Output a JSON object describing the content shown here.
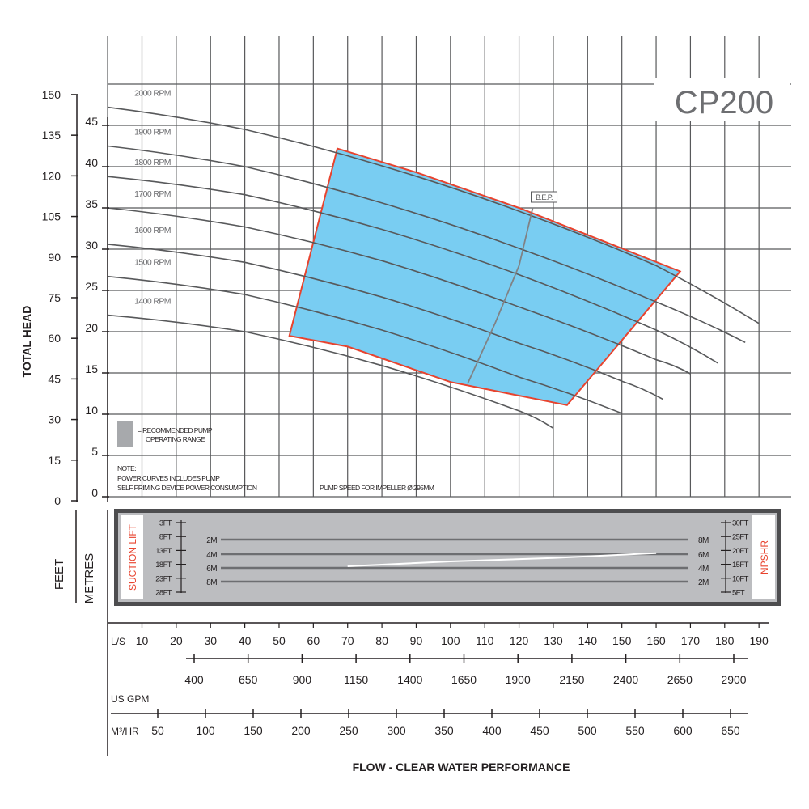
{
  "model": "CP200",
  "axes": {
    "total_head_label": "TOTAL HEAD",
    "feet_label": "FEET",
    "metres_label": "METRES",
    "feet_ticks": [
      "150",
      "135",
      "120",
      "105",
      "90",
      "75",
      "60",
      "45",
      "30",
      "15",
      "0"
    ],
    "metres_ticks": [
      "45",
      "40",
      "35",
      "30",
      "25",
      "20",
      "15",
      "10",
      "5",
      "0"
    ],
    "ls_label": "L/S",
    "ls_ticks": [
      "10",
      "20",
      "30",
      "40",
      "50",
      "60",
      "70",
      "80",
      "90",
      "100",
      "110",
      "120",
      "130",
      "140",
      "150",
      "160",
      "170",
      "180",
      "190"
    ],
    "gpm_label": "US GPM",
    "gpm_ticks": [
      "400",
      "650",
      "900",
      "1150",
      "1400",
      "1650",
      "1900",
      "2150",
      "2400",
      "2650",
      "2900"
    ],
    "m3hr_label": "M³/HR",
    "m3hr_ticks": [
      "50",
      "100",
      "150",
      "200",
      "250",
      "300",
      "350",
      "400",
      "450",
      "500",
      "550",
      "600",
      "650"
    ],
    "flow_title": "FLOW - CLEAR WATER PERFORMANCE"
  },
  "legend": {
    "line1": "= RECOMMENDED PUMP",
    "line2": "OPERATING RANGE",
    "colors": {
      "legend_swatch": "#a7a9ac",
      "range_fill": "#79cdf2",
      "range_border": "#e8432e"
    }
  },
  "notes": {
    "line1": "NOTE:",
    "line2": "POWER CURVES INCLUDES PUMP",
    "line3": "SELF PRIMING DEVICE POWER CONSUMPTION",
    "line4": "PUMP SPEED FOR IMPELLER Ø 295MM"
  },
  "bep_label": "B.E.P.",
  "suction_panel": {
    "suction_title": "SUCTION LIFT",
    "npshr_title": "NPSHR",
    "left_ft_ticks": [
      "3FT",
      "8FT",
      "13FT",
      "18FT",
      "23FT",
      "28FT"
    ],
    "left_m_ticks": [
      "2M",
      "4M",
      "6M",
      "8M"
    ],
    "right_ft_ticks": [
      "30FT",
      "25FT",
      "20FT",
      "15FT",
      "10FT",
      "5FT"
    ],
    "right_m_ticks": [
      "8M",
      "6M",
      "4M",
      "2M"
    ]
  },
  "chart_data": {
    "type": "line",
    "x_unit": "L/S",
    "y_unit": "METRES",
    "xlim": [
      10,
      190
    ],
    "ylim": [
      0,
      45
    ],
    "series": [
      {
        "name": "2000 RPM",
        "points": [
          [
            0,
            47.2
          ],
          [
            40,
            44.5
          ],
          [
            80,
            40.1
          ],
          [
            120,
            34.6
          ],
          [
            160,
            28.0
          ],
          [
            190,
            21.0
          ]
        ]
      },
      {
        "name": "1900 RPM",
        "points": [
          [
            0,
            42.5
          ],
          [
            40,
            40.0
          ],
          [
            80,
            35.6
          ],
          [
            120,
            30.1
          ],
          [
            160,
            23.6
          ],
          [
            186,
            18.7
          ]
        ]
      },
      {
        "name": "1800 RPM",
        "points": [
          [
            0,
            38.8
          ],
          [
            40,
            36.6
          ],
          [
            80,
            32.4
          ],
          [
            120,
            26.9
          ],
          [
            160,
            20.2
          ],
          [
            178,
            16.2
          ]
        ]
      },
      {
        "name": "1700 RPM",
        "points": [
          [
            0,
            35.0
          ],
          [
            40,
            32.7
          ],
          [
            80,
            28.6
          ],
          [
            120,
            23.0
          ],
          [
            160,
            16.6
          ],
          [
            170,
            14.9
          ]
        ]
      },
      {
        "name": "1600 RPM",
        "points": [
          [
            0,
            30.6
          ],
          [
            40,
            28.4
          ],
          [
            80,
            24.2
          ],
          [
            120,
            18.6
          ],
          [
            150,
            14.0
          ],
          [
            162,
            11.8
          ]
        ]
      },
      {
        "name": "1500 RPM",
        "points": [
          [
            0,
            26.7
          ],
          [
            40,
            24.5
          ],
          [
            80,
            20.2
          ],
          [
            120,
            14.5
          ],
          [
            150,
            10.1
          ]
        ]
      },
      {
        "name": "1400 RPM",
        "points": [
          [
            0,
            22.0
          ],
          [
            40,
            20.0
          ],
          [
            80,
            15.9
          ],
          [
            120,
            10.4
          ],
          [
            130,
            8.3
          ]
        ]
      }
    ],
    "recommended_range": [
      [
        53,
        19.5
      ],
      [
        67,
        42.2
      ],
      [
        90,
        39.3
      ],
      [
        120,
        35.0
      ],
      [
        167,
        27.3
      ],
      [
        134,
        11.1
      ],
      [
        100,
        13.9
      ],
      [
        70,
        18.2
      ]
    ],
    "bep_curve": [
      [
        124,
        35.0
      ],
      [
        120,
        28.0
      ],
      [
        113,
        21.0
      ],
      [
        105,
        13.7
      ]
    ],
    "npshr_curve": [
      [
        70,
        4.3
      ],
      [
        100,
        5.0
      ],
      [
        130,
        5.5
      ],
      [
        160,
        6.2
      ]
    ]
  }
}
